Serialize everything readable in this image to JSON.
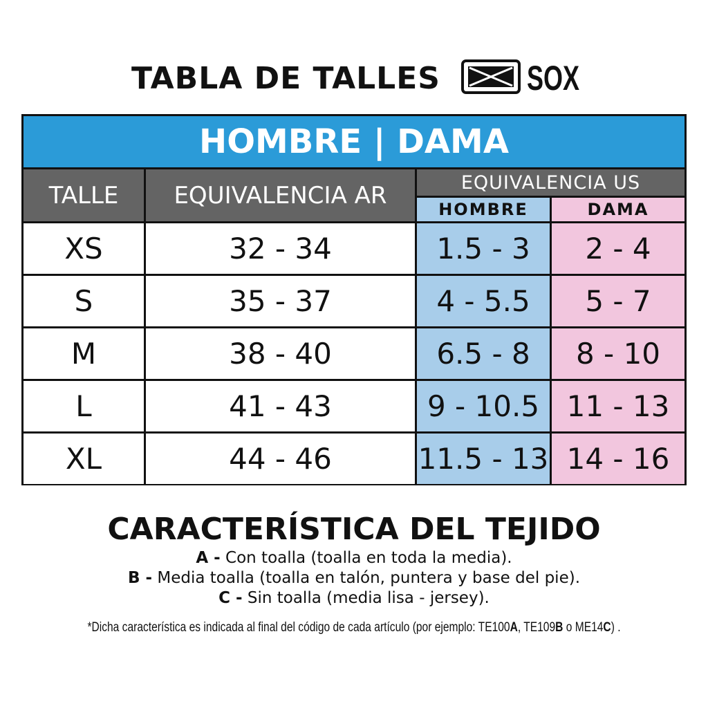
{
  "header": {
    "title": "TABLA DE TALLES",
    "brand": "SOX"
  },
  "table": {
    "band": "HOMBRE | DAMA",
    "columns": {
      "talle": "TALLE",
      "ar": "EQUIVALENCIA AR",
      "us": "EQUIVALENCIA US",
      "hombre": "HOMBRE",
      "dama": "DAMA"
    },
    "rows": [
      {
        "talle": "XS",
        "ar": "32 - 34",
        "hombre": "1.5 - 3",
        "dama": "2 - 4"
      },
      {
        "talle": "S",
        "ar": "35 - 37",
        "hombre": "4 - 5.5",
        "dama": "5 - 7"
      },
      {
        "talle": "M",
        "ar": "38 - 40",
        "hombre": "6.5 - 8",
        "dama": "8 - 10"
      },
      {
        "talle": "L",
        "ar": "41 - 43",
        "hombre": "9 - 10.5",
        "dama": "11 - 13"
      },
      {
        "talle": "XL",
        "ar": "44 - 46",
        "hombre": "11.5 - 13",
        "dama": "14 - 16"
      }
    ]
  },
  "colors": {
    "band": "#2b9bd8",
    "header": "#646464",
    "hombre": "#a8cdea",
    "dama": "#f2c6de"
  },
  "fabric": {
    "title": "CARACTERÍSTICA DEL TEJIDO",
    "items": [
      {
        "key": "A -",
        "text": " Con toalla (toalla en toda la media)."
      },
      {
        "key": "B -",
        "text": " Media toalla (toalla en talón, puntera y base del pie)."
      },
      {
        "key": "C -",
        "text": " Sin toalla (media lisa - jersey)."
      }
    ],
    "note": {
      "prefix": "*Dicha característica es indicada al final del código de cada artículo (por ejemplo: TE100",
      "a": "A",
      "sep1": ", TE109",
      "b": "B",
      "sep2": " o ME14",
      "c": "C",
      "suffix": ") ."
    }
  }
}
